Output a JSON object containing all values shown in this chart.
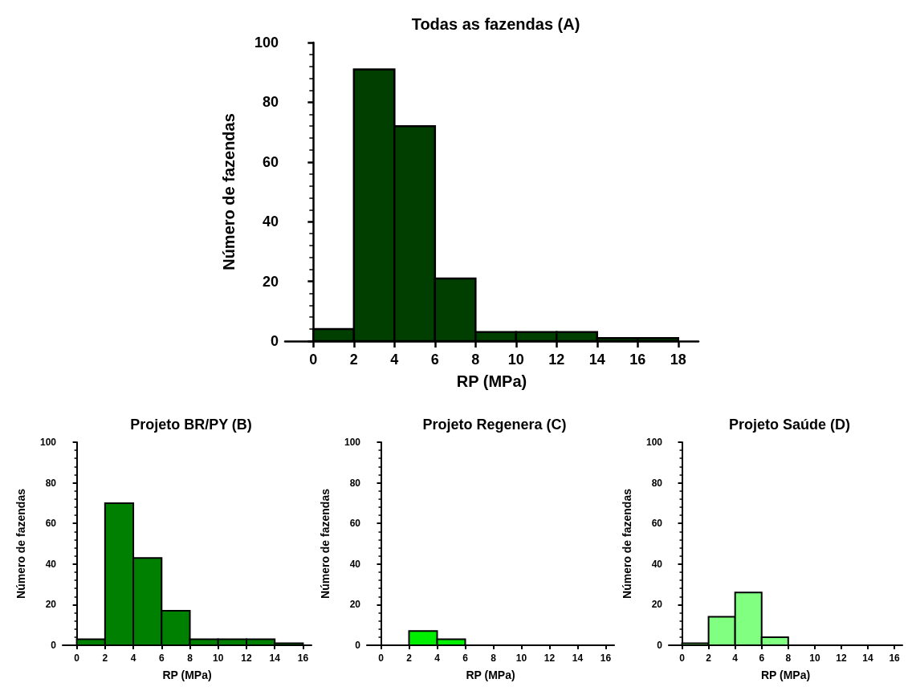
{
  "chart_data": [
    {
      "type": "histogram",
      "title": "Todas as fazendas (A)",
      "xlabel": "RP (MPa)",
      "ylabel": "Número de fazendas",
      "color": "#003f00",
      "bins": [
        0,
        2,
        4,
        6,
        8,
        10,
        12,
        14,
        16,
        18
      ],
      "values": [
        4,
        91,
        72,
        21,
        3,
        3,
        3,
        1,
        1
      ],
      "xlim": [
        -1.4,
        19
      ],
      "xticks": [
        0,
        2,
        4,
        6,
        8,
        10,
        12,
        14,
        16,
        18
      ],
      "ylim": [
        0,
        100
      ],
      "yticks": [
        0,
        20,
        40,
        60,
        80,
        100
      ],
      "grid": false
    },
    {
      "type": "histogram",
      "title": "Projeto BR/PY (B)",
      "xlabel": "RP (MPa)",
      "ylabel": "Número de fazendas",
      "color": "#008000",
      "bins": [
        0,
        2,
        4,
        6,
        8,
        10,
        12,
        14,
        16
      ],
      "values": [
        3,
        70,
        43,
        17,
        3,
        3,
        3,
        1
      ],
      "xlim": [
        -1,
        16.6
      ],
      "xticks": [
        0,
        2,
        4,
        6,
        8,
        10,
        12,
        14,
        16
      ],
      "ylim": [
        0,
        100
      ],
      "yticks": [
        0,
        20,
        40,
        60,
        80,
        100
      ],
      "grid": false
    },
    {
      "type": "histogram",
      "title": "Projeto Regenera (C)",
      "xlabel": "RP (MPa)",
      "ylabel": "Número de fazendas",
      "color": "#00ee00",
      "bins": [
        0,
        2,
        4,
        6,
        8,
        10,
        12,
        14,
        16
      ],
      "values": [
        0,
        7,
        3,
        0,
        0,
        0,
        0,
        0
      ],
      "xlim": [
        -1,
        16.6
      ],
      "xticks": [
        0,
        2,
        4,
        6,
        8,
        10,
        12,
        14,
        16
      ],
      "ylim": [
        0,
        100
      ],
      "yticks": [
        0,
        20,
        40,
        60,
        80,
        100
      ],
      "grid": false
    },
    {
      "type": "histogram",
      "title": "Projeto Saúde (D)",
      "xlabel": "RP (MPa)",
      "ylabel": "Número de fazendas",
      "color": "#80ff80",
      "bins": [
        0,
        2,
        4,
        6,
        8,
        10,
        12,
        14,
        16
      ],
      "values": [
        1,
        14,
        26,
        4,
        0,
        0,
        0,
        0
      ],
      "xlim": [
        -1,
        16.6
      ],
      "xticks": [
        0,
        2,
        4,
        6,
        8,
        10,
        12,
        14,
        16
      ],
      "ylim": [
        0,
        100
      ],
      "yticks": [
        0,
        20,
        40,
        60,
        80,
        100
      ],
      "grid": false
    }
  ]
}
